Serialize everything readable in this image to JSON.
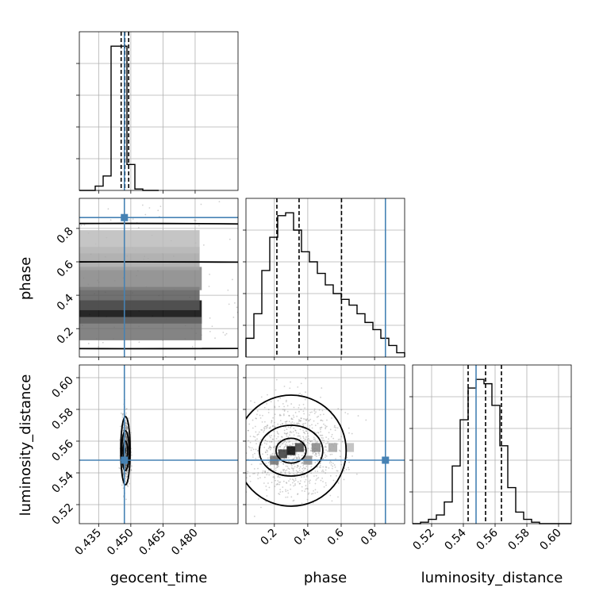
{
  "chart_data": {
    "type": "corner",
    "parameters": [
      "geocent_time",
      "phase",
      "luminosity_distance"
    ],
    "truth_color": "#4682b4",
    "truths": {
      "geocent_time": 0.447,
      "phase": 0.865,
      "luminosity_distance": 0.548
    },
    "axes": {
      "geocent_time": {
        "range": [
          0.426,
          0.5
        ],
        "ticks": [
          0.435,
          0.45,
          0.465,
          0.48
        ],
        "tick_labels": [
          "0.435",
          "0.450",
          "0.465",
          "0.480"
        ]
      },
      "phase": {
        "range": [
          0.03,
          0.98
        ],
        "ticks": [
          0.2,
          0.4,
          0.6,
          0.8
        ],
        "tick_labels": [
          "0.2",
          "0.4",
          "0.6",
          "0.8"
        ]
      },
      "luminosity_distance": {
        "range": [
          0.508,
          0.608
        ],
        "ticks": [
          0.52,
          0.54,
          0.56,
          0.58,
          0.6
        ],
        "tick_labels": [
          "0.52",
          "0.54",
          "0.56",
          "0.58",
          "0.60"
        ]
      }
    },
    "histograms": {
      "geocent_time": {
        "edges": [
          0.426,
          0.4297,
          0.4334,
          0.4371,
          0.4408,
          0.4445,
          0.4482,
          0.4519,
          0.4556,
          0.4593,
          0.463
        ],
        "counts": [
          0,
          0,
          0.03,
          0.1,
          1.0,
          1.0,
          0.18,
          0.01,
          0,
          0
        ],
        "quantiles": [
          0.4455,
          0.4472,
          0.449
        ]
      },
      "phase": {
        "edges": [
          0.03,
          0.0775,
          0.125,
          0.1725,
          0.22,
          0.2675,
          0.315,
          0.3625,
          0.41,
          0.4575,
          0.505,
          0.5525,
          0.6,
          0.6475,
          0.695,
          0.7425,
          0.79,
          0.8375,
          0.885,
          0.9325,
          0.98
        ],
        "counts": [
          0.13,
          0.3,
          0.6,
          0.83,
          0.98,
          1.0,
          0.88,
          0.73,
          0.66,
          0.58,
          0.5,
          0.44,
          0.4,
          0.36,
          0.3,
          0.24,
          0.19,
          0.13,
          0.08,
          0.03
        ],
        "quantiles": [
          0.215,
          0.348,
          0.602
        ]
      },
      "luminosity_distance": {
        "edges": [
          0.508,
          0.513,
          0.518,
          0.523,
          0.528,
          0.533,
          0.538,
          0.543,
          0.548,
          0.553,
          0.558,
          0.563,
          0.568,
          0.573,
          0.578,
          0.583,
          0.588,
          0.593,
          0.598,
          0.603,
          0.608
        ],
        "counts": [
          0,
          0.01,
          0.03,
          0.06,
          0.15,
          0.4,
          0.72,
          0.94,
          1.0,
          0.97,
          0.82,
          0.54,
          0.25,
          0.08,
          0.03,
          0.01,
          0,
          0,
          0,
          0
        ],
        "quantiles": [
          0.543,
          0.554,
          0.564
        ]
      }
    },
    "joint": [
      {
        "x": "geocent_time",
        "y": "phase",
        "center": [
          0.4475,
          0.3
        ],
        "cells": [
          [
            0.4475,
            0.3,
            1.0
          ],
          [
            0.4465,
            0.38,
            0.6
          ],
          [
            0.4475,
            0.5,
            0.4
          ],
          [
            0.4465,
            0.62,
            0.25
          ],
          [
            0.4475,
            0.2,
            0.5
          ],
          [
            0.4465,
            0.72,
            0.15
          ]
        ],
        "contours": [
          [
            0.4448,
            0.87
          ],
          [
            0.4475,
            0.45
          ],
          [
            0.4485,
            0.26
          ]
        ],
        "contour_offset": [
          [
            0.0,
            0.15
          ],
          [
            0.0,
            0.08
          ],
          [
            0.0,
            0.04
          ]
        ]
      },
      {
        "x": "geocent_time",
        "y": "luminosity_distance",
        "center": [
          0.4475,
          0.554
        ],
        "cells": [
          [
            0.4475,
            0.554,
            1.0
          ],
          [
            0.4465,
            0.56,
            0.5
          ],
          [
            0.4475,
            0.548,
            0.6
          ],
          [
            0.4485,
            0.554,
            0.4
          ]
        ],
        "contours": [
          [
            0.0022,
            0.0215
          ],
          [
            0.0017,
            0.0125
          ],
          [
            0.001,
            0.006
          ]
        ]
      },
      {
        "x": "phase",
        "y": "luminosity_distance",
        "center": [
          0.3,
          0.554
        ],
        "cells": [
          [
            0.3,
            0.554,
            1.0
          ],
          [
            0.25,
            0.552,
            0.75
          ],
          [
            0.35,
            0.556,
            0.7
          ],
          [
            0.45,
            0.556,
            0.4
          ],
          [
            0.55,
            0.556,
            0.25
          ],
          [
            0.2,
            0.548,
            0.5
          ],
          [
            0.65,
            0.556,
            0.15
          ],
          [
            0.4,
            0.548,
            0.35
          ]
        ],
        "contours": [
          [
            0.33,
            0.035
          ],
          [
            0.19,
            0.016
          ],
          [
            0.09,
            0.0078
          ]
        ]
      }
    ]
  }
}
